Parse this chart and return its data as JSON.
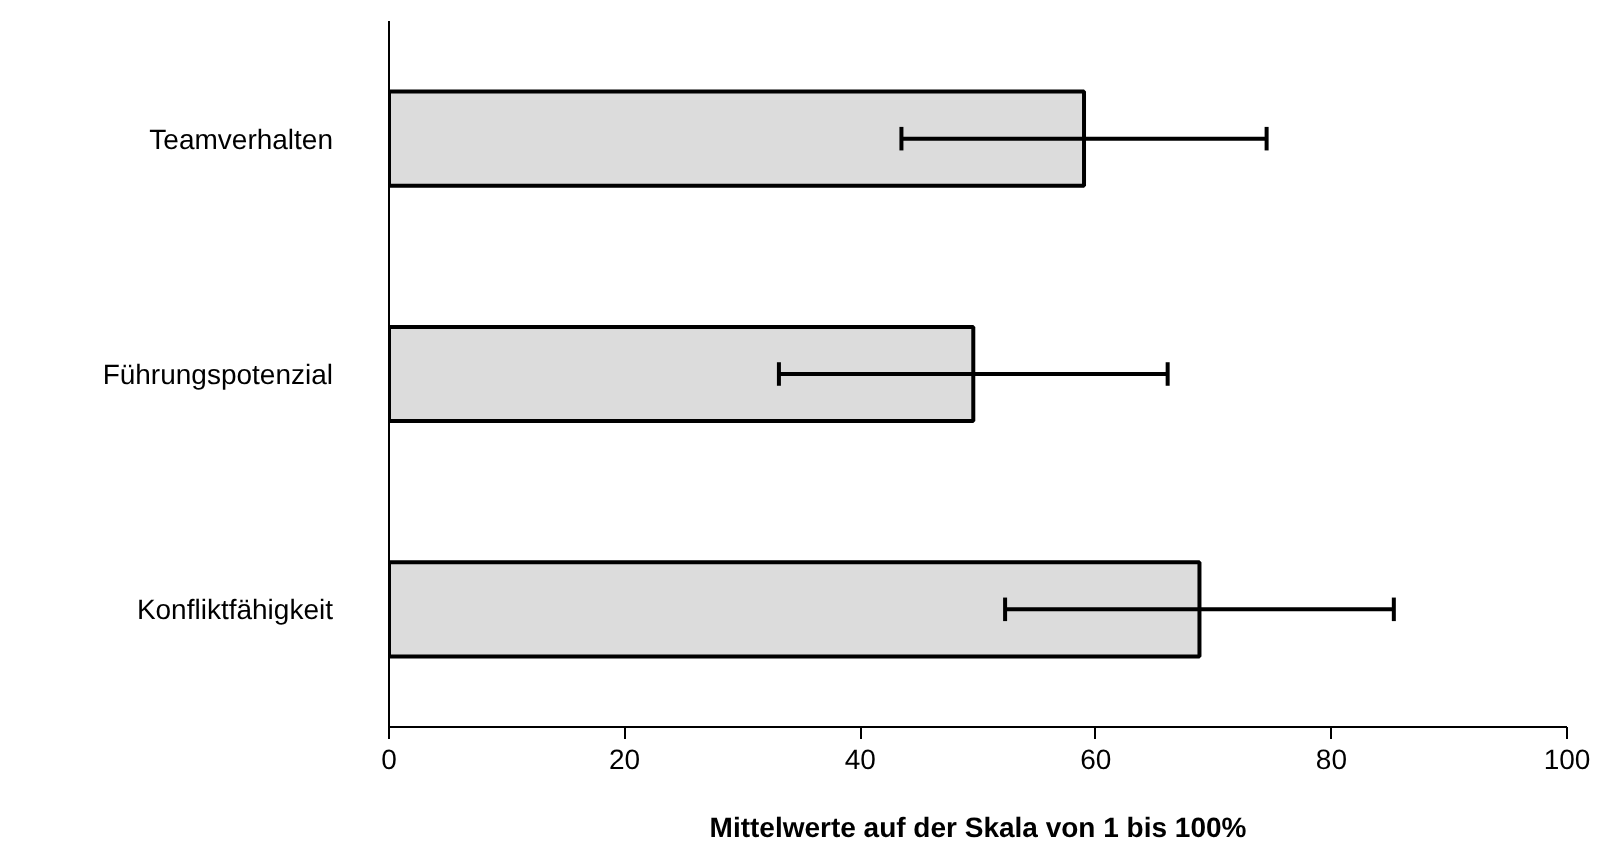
{
  "chart_data": {
    "type": "bar",
    "orientation": "horizontal",
    "categories": [
      "Teamverhalten",
      "Führungspotenzial",
      "Konfliktfähigkeit"
    ],
    "values": [
      59,
      49.6,
      68.8
    ],
    "errors": [
      15.5,
      16.5,
      16.5
    ],
    "color": "#dcdcdc",
    "xlabel": "Mittelwerte auf der Skala von 1 bis 100%",
    "xlim": [
      0,
      100
    ],
    "xticks": [
      0,
      20,
      40,
      60,
      80,
      100
    ],
    "grid": false
  }
}
